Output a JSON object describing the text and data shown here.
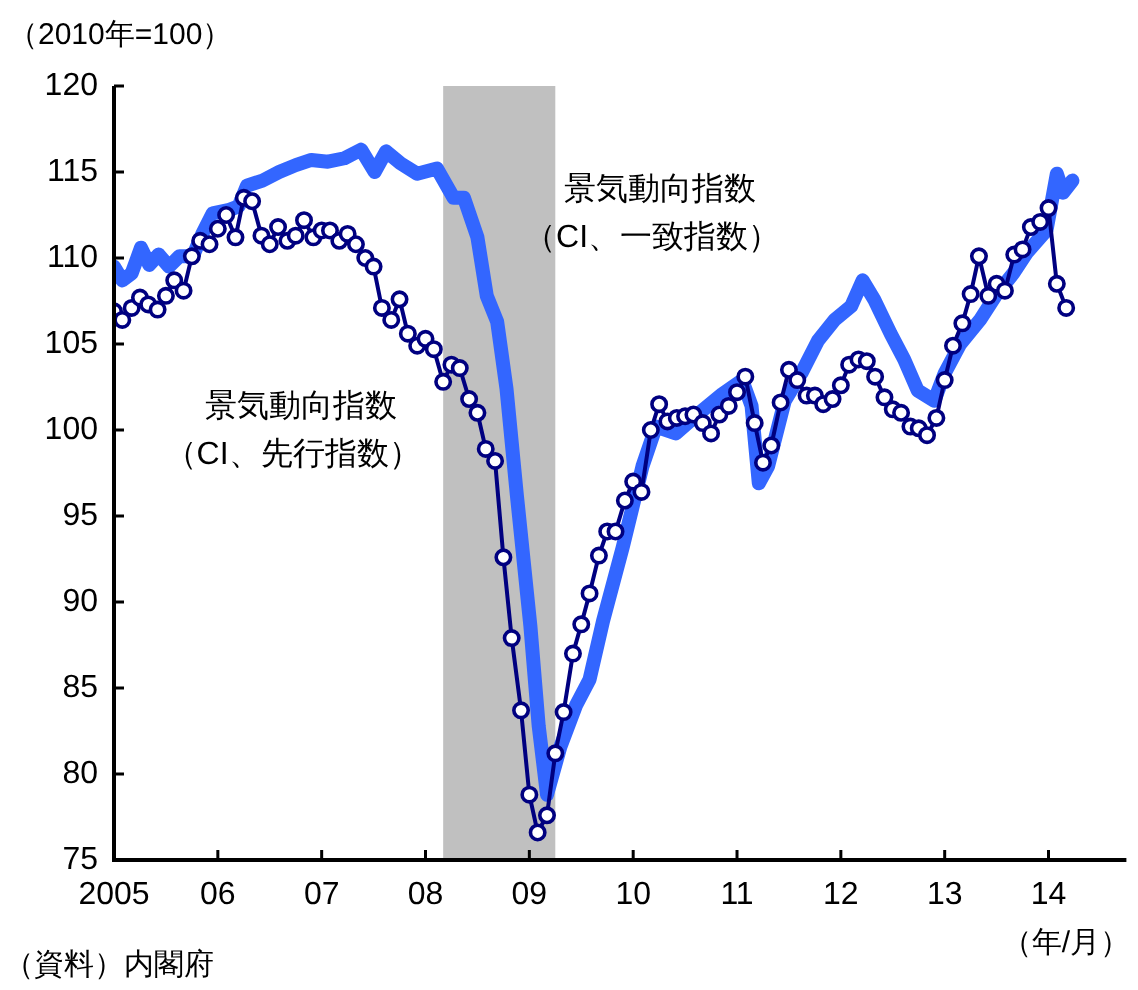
{
  "chart_data": {
    "type": "line",
    "ylabel": "（2010年=100）",
    "xlabel": "（年/月）",
    "xlim": [
      2005,
      2014.75
    ],
    "xticks": [
      {
        "value": 2005,
        "label": "2005"
      },
      {
        "value": 2006,
        "label": "06"
      },
      {
        "value": 2007,
        "label": "07"
      },
      {
        "value": 2008,
        "label": "08"
      },
      {
        "value": 2009,
        "label": "09"
      },
      {
        "value": 2010,
        "label": "10"
      },
      {
        "value": 2011,
        "label": "11"
      },
      {
        "value": 2012,
        "label": "12"
      },
      {
        "value": 2013,
        "label": "13"
      },
      {
        "value": 2014,
        "label": "14"
      }
    ],
    "ylim": [
      75,
      120
    ],
    "yticks": [
      75,
      80,
      85,
      90,
      95,
      100,
      105,
      110,
      115,
      120
    ],
    "grid": false,
    "legend": false,
    "bands": [
      {
        "axis": "x",
        "from": 2008.17,
        "to": 2009.25,
        "color": "#c0c0c0"
      }
    ],
    "annotations": [
      "（資料）内閣府"
    ],
    "series": [
      {
        "name": "景気動向指数（CI、一致指数）",
        "color": "#3366ff",
        "marker": "none",
        "x": [
          2005.0,
          2005.08,
          2005.17,
          2005.26,
          2005.34,
          2005.43,
          2005.53,
          2005.63,
          2005.76,
          2005.85,
          2005.95,
          2006.11,
          2006.2,
          2006.28,
          2006.43,
          2006.59,
          2006.75,
          2006.9,
          2007.06,
          2007.22,
          2007.38,
          2007.51,
          2007.62,
          2007.76,
          2007.92,
          2008.11,
          2008.27,
          2008.37,
          2008.5,
          2008.59,
          2008.69,
          2008.78,
          2008.88,
          2009.01,
          2009.09,
          2009.17,
          2009.3,
          2009.45,
          2009.58,
          2009.71,
          2009.9,
          2010.09,
          2010.22,
          2010.41,
          2010.6,
          2010.86,
          2011.05,
          2011.14,
          2011.21,
          2011.3,
          2011.46,
          2011.62,
          2011.78,
          2011.94,
          2012.1,
          2012.21,
          2012.32,
          2012.48,
          2012.61,
          2012.74,
          2012.9,
          2013.0,
          2013.15,
          2013.34,
          2013.5,
          2013.66,
          2013.79,
          2013.98,
          2014.08,
          2014.14,
          2014.23
        ],
        "values": [
          109.5,
          108.7,
          109.1,
          110.6,
          109.6,
          110.2,
          109.5,
          110.1,
          110.1,
          111.4,
          112.6,
          112.8,
          113.0,
          114.2,
          114.5,
          115.0,
          115.4,
          115.7,
          115.6,
          115.8,
          116.3,
          115.0,
          116.2,
          115.5,
          114.9,
          115.2,
          113.5,
          113.5,
          111.2,
          107.8,
          106.3,
          102.4,
          96.2,
          88.6,
          82.8,
          78.8,
          81.6,
          84.0,
          85.5,
          88.9,
          93.2,
          97.9,
          100.2,
          99.8,
          100.8,
          102.1,
          102.9,
          101.4,
          96.9,
          97.9,
          101.7,
          103.3,
          105.2,
          106.4,
          107.2,
          108.7,
          107.6,
          105.6,
          104.1,
          102.3,
          101.7,
          103.3,
          105.0,
          106.4,
          107.9,
          109.1,
          110.3,
          111.6,
          114.9,
          113.8,
          114.5
        ]
      },
      {
        "name": "景気動向指数（CI、先行指数）",
        "color": "#000080",
        "marker": "circle",
        "x": [
          2005.0,
          2005.08,
          2005.17,
          2005.25,
          2005.33,
          2005.42,
          2005.5,
          2005.58,
          2005.67,
          2005.75,
          2005.83,
          2005.92,
          2006.0,
          2006.08,
          2006.17,
          2006.25,
          2006.33,
          2006.42,
          2006.5,
          2006.58,
          2006.67,
          2006.75,
          2006.83,
          2006.92,
          2007.0,
          2007.08,
          2007.17,
          2007.25,
          2007.33,
          2007.42,
          2007.5,
          2007.58,
          2007.67,
          2007.75,
          2007.83,
          2007.92,
          2008.0,
          2008.08,
          2008.17,
          2008.25,
          2008.33,
          2008.42,
          2008.5,
          2008.58,
          2008.67,
          2008.75,
          2008.83,
          2008.92,
          2009.0,
          2009.08,
          2009.17,
          2009.25,
          2009.33,
          2009.42,
          2009.5,
          2009.58,
          2009.67,
          2009.75,
          2009.83,
          2009.92,
          2010.0,
          2010.08,
          2010.17,
          2010.25,
          2010.33,
          2010.42,
          2010.5,
          2010.58,
          2010.67,
          2010.75,
          2010.83,
          2010.92,
          2011.0,
          2011.08,
          2011.17,
          2011.25,
          2011.33,
          2011.42,
          2011.5,
          2011.58,
          2011.67,
          2011.75,
          2011.83,
          2011.92,
          2012.0,
          2012.08,
          2012.17,
          2012.25,
          2012.33,
          2012.42,
          2012.5,
          2012.58,
          2012.67,
          2012.75,
          2012.83,
          2012.92,
          2013.0,
          2013.08,
          2013.17,
          2013.25,
          2013.33,
          2013.42,
          2013.5,
          2013.58,
          2013.67,
          2013.75,
          2013.83,
          2013.92,
          2014.0,
          2014.08,
          2014.17
        ],
        "values": [
          106.9,
          106.4,
          107.1,
          107.7,
          107.3,
          107.0,
          107.8,
          108.7,
          108.1,
          110.1,
          111.0,
          110.8,
          111.7,
          112.5,
          111.2,
          113.5,
          113.3,
          111.3,
          110.8,
          111.8,
          111.0,
          111.3,
          112.2,
          111.2,
          111.6,
          111.6,
          111.0,
          111.4,
          110.8,
          110.0,
          109.5,
          107.1,
          106.4,
          107.6,
          105.6,
          104.9,
          105.3,
          104.7,
          102.8,
          103.8,
          103.6,
          101.8,
          101.0,
          98.9,
          98.2,
          92.6,
          87.9,
          83.7,
          78.8,
          76.6,
          77.6,
          81.2,
          83.6,
          87.0,
          88.7,
          90.5,
          92.7,
          94.1,
          94.1,
          95.9,
          97.0,
          96.4,
          100.0,
          101.5,
          100.5,
          100.7,
          100.8,
          100.9,
          100.4,
          99.8,
          100.9,
          101.4,
          102.2,
          103.1,
          100.4,
          98.1,
          99.1,
          101.6,
          103.5,
          102.9,
          102.0,
          102.0,
          101.5,
          101.8,
          102.6,
          103.8,
          104.1,
          104.0,
          103.1,
          101.9,
          101.2,
          101.0,
          100.2,
          100.1,
          99.7,
          100.7,
          102.9,
          104.9,
          106.2,
          107.9,
          110.1,
          107.8,
          108.5,
          108.1,
          110.2,
          110.5,
          111.8,
          112.1,
          112.9,
          108.5,
          107.1
        ]
      }
    ]
  }
}
